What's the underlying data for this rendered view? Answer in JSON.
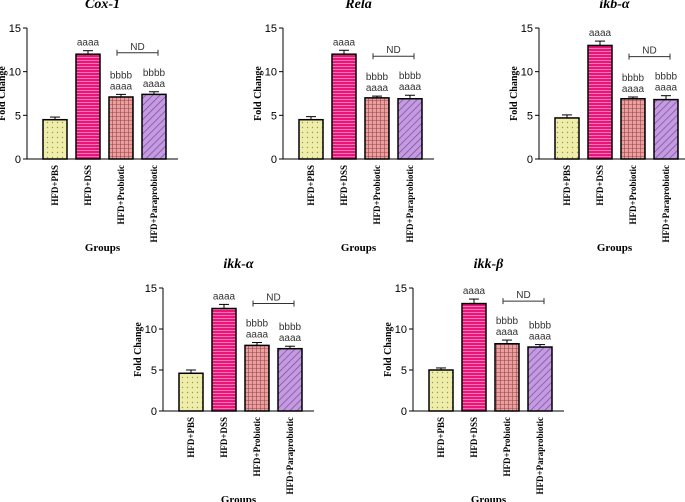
{
  "chart_data": [
    {
      "type": "bar",
      "title": "Cox-1",
      "ylabel": "Fold Change",
      "xlabel": "Groups",
      "ylim": [
        0,
        15
      ],
      "yticks": [
        0,
        5,
        10,
        15
      ],
      "categories": [
        "HFD+PBS",
        "HFD+DSS",
        "HFD+Probiotic",
        "HFD+Paraprobiotic"
      ],
      "values": [
        4.5,
        12.0,
        7.1,
        7.4
      ],
      "errors": [
        0.3,
        0.4,
        0.3,
        0.3
      ],
      "significance": [
        [],
        [
          "aaaa"
        ],
        [
          "bbbb",
          "aaaa"
        ],
        [
          "bbbb",
          "aaaa"
        ]
      ],
      "bracket_label": "ND"
    },
    {
      "type": "bar",
      "title": "Rela",
      "ylabel": "Fold Change",
      "xlabel": "Groups",
      "ylim": [
        0,
        15
      ],
      "yticks": [
        0,
        5,
        10,
        15
      ],
      "categories": [
        "HFD+PBS",
        "HFD+DSS",
        "HFD+Probiotic",
        "HFD+Paraprobiotic"
      ],
      "values": [
        4.5,
        12.0,
        7.0,
        6.9
      ],
      "errors": [
        0.35,
        0.45,
        0.2,
        0.4
      ],
      "significance": [
        [],
        [
          "aaaa"
        ],
        [
          "bbbb",
          "aaaa"
        ],
        [
          "bbbb",
          "aaaa"
        ]
      ],
      "bracket_label": "ND"
    },
    {
      "type": "bar",
      "title": "ikb-α",
      "ylabel": "Fold Change",
      "xlabel": "Groups",
      "ylim": [
        0,
        15
      ],
      "yticks": [
        0,
        5,
        10,
        15
      ],
      "categories": [
        "HFD+PBS",
        "HFD+DSS",
        "HFD+Probiotic",
        "HFD+Paraprobiotic"
      ],
      "values": [
        4.7,
        13.0,
        6.9,
        6.8
      ],
      "errors": [
        0.35,
        0.5,
        0.2,
        0.45
      ],
      "significance": [
        [],
        [
          "aaaa"
        ],
        [
          "bbbb",
          "aaaa"
        ],
        [
          "bbbb",
          "aaaa"
        ]
      ],
      "bracket_label": "ND"
    },
    {
      "type": "bar",
      "title": "ikk-α",
      "ylabel": "Fold Change",
      "xlabel": "Groups",
      "ylim": [
        0,
        15
      ],
      "yticks": [
        0,
        5,
        10,
        15
      ],
      "categories": [
        "HFD+PBS",
        "HFD+DSS",
        "HFD+Probiotic",
        "HFD+Paraprobiotic"
      ],
      "values": [
        4.6,
        12.5,
        8.0,
        7.6
      ],
      "errors": [
        0.4,
        0.5,
        0.35,
        0.3
      ],
      "significance": [
        [],
        [
          "aaaa"
        ],
        [
          "bbbb",
          "aaaa"
        ],
        [
          "bbbb",
          "aaaa"
        ]
      ],
      "bracket_label": "ND"
    },
    {
      "type": "bar",
      "title": "ikk-β",
      "ylabel": "Fold Change",
      "xlabel": "Groups",
      "ylim": [
        0,
        15
      ],
      "yticks": [
        0,
        5,
        10,
        15
      ],
      "categories": [
        "HFD+PBS",
        "HFD+DSS",
        "HFD+Probiotic",
        "HFD+Paraprobiotic"
      ],
      "values": [
        5.0,
        13.1,
        8.2,
        7.8
      ],
      "errors": [
        0.25,
        0.55,
        0.45,
        0.3
      ],
      "significance": [
        [],
        [
          "aaaa"
        ],
        [
          "bbbb",
          "aaaa"
        ],
        [
          "bbbb",
          "aaaa"
        ]
      ],
      "bracket_label": "ND"
    }
  ],
  "styles": {
    "bar_colors": [
      "#eeeeaa",
      "#e8157a",
      "#ee9e9e",
      "#c49ae0"
    ],
    "patterns": [
      "dots",
      "horizontal-lines",
      "grid",
      "diagonal-lines"
    ],
    "axis_color": "#000000",
    "annotation_color": "#333333"
  }
}
